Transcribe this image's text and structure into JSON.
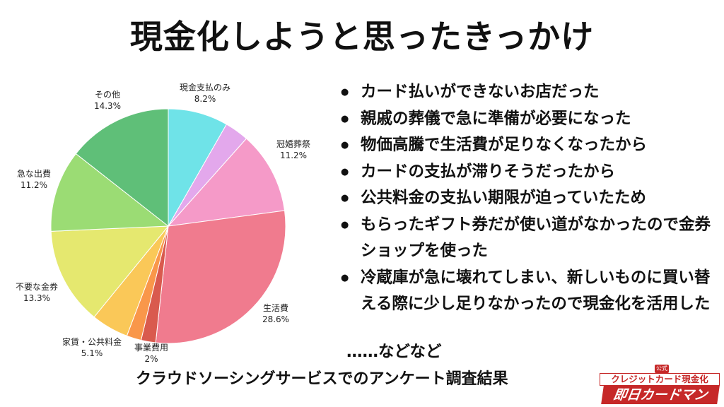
{
  "title": "現金化しようと思ったきっかけ",
  "chart_data": {
    "type": "pie",
    "slices": [
      {
        "label": "現金支払のみ",
        "value": 8.2,
        "pct_label": "8.2%",
        "color": "#6fe3e8"
      },
      {
        "label": "",
        "value": 3.3,
        "pct_label": "",
        "color": "#e3a8ec"
      },
      {
        "label": "冠婚葬祭",
        "value": 11.2,
        "pct_label": "11.2%",
        "color": "#f59ac8"
      },
      {
        "label": "生活費",
        "value": 28.6,
        "pct_label": "28.6%",
        "color": "#f07b8e"
      },
      {
        "label": "",
        "value": 2.0,
        "pct_label": "",
        "color": "#d95a4e"
      },
      {
        "label": "事業費用",
        "value": 2.0,
        "pct_label": "2%",
        "color": "#f9974a"
      },
      {
        "label": "家賃・公共料金",
        "value": 5.1,
        "pct_label": "5.1%",
        "color": "#fac858"
      },
      {
        "label": "不要な金券",
        "value": 13.3,
        "pct_label": "13.3%",
        "color": "#e5e86f"
      },
      {
        "label": "急な出費",
        "value": 11.2,
        "pct_label": "11.2%",
        "color": "#9bdc74"
      },
      {
        "label": "その他",
        "value": 14.3,
        "pct_label": "14.3%",
        "color": "#5fbf78"
      }
    ]
  },
  "reasons": [
    "カード払いができないお店だった",
    "親戚の葬儀で急に準備が必要になった",
    "物価高騰で生活費が足りなくなったから",
    "カードの支払が滞りそうだったから",
    "公共料金の支払い期限が迫っていたため",
    "もらったギフト券だが使い道がなかったので金券ショップを使った",
    "冷蔵庫が急に壊れてしまい、新しいものに買い替える際に少し足りなかったので現金化を活用した"
  ],
  "etc_note": "……などなど",
  "source_note": "クラウドソーシングサービスでのアンケート調査結果",
  "logo": {
    "badge": "公式",
    "line1": "クレジットカード現金化",
    "line2": "即日カードマン"
  }
}
